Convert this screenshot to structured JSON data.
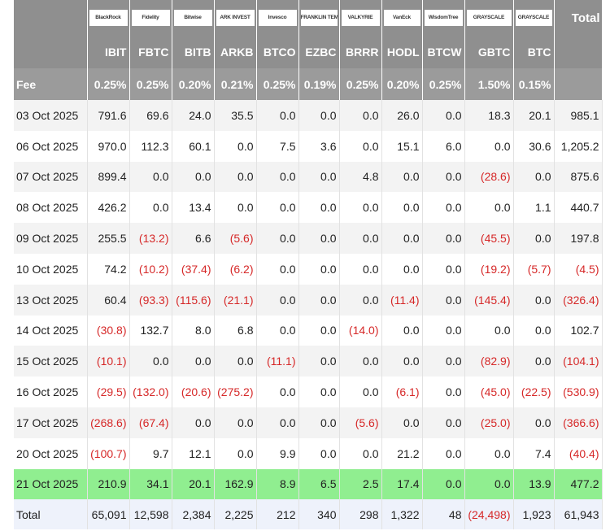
{
  "header": {
    "brands": [
      "BlackRock",
      "Fidelity",
      "Bitwise",
      "ARK INVEST",
      "Invesco",
      "FRANKLIN TEMPLETON",
      "VALKYRIE",
      "VanEck",
      "WisdomTree",
      "GRAYSCALE",
      "GRAYSCALE"
    ],
    "total_label": "Total",
    "tickers": [
      "IBIT",
      "FBTC",
      "BITB",
      "ARKB",
      "BTCO",
      "EZBC",
      "BRRR",
      "HODL",
      "BTCW",
      "GBTC",
      "BTC"
    ],
    "fee_label": "Fee",
    "fees": [
      "0.25%",
      "0.25%",
      "0.20%",
      "0.21%",
      "0.25%",
      "0.19%",
      "0.25%",
      "0.20%",
      "0.25%",
      "1.50%",
      "0.15%"
    ]
  },
  "rows": [
    {
      "date": "03 Oct 2025",
      "values": [
        "791.6",
        "69.6",
        "24.0",
        "35.5",
        "0.0",
        "0.0",
        "0.0",
        "26.0",
        "0.0",
        "18.3",
        "20.1",
        "985.1"
      ]
    },
    {
      "date": "06 Oct 2025",
      "values": [
        "970.0",
        "112.3",
        "60.1",
        "0.0",
        "7.5",
        "3.6",
        "0.0",
        "15.1",
        "6.0",
        "0.0",
        "30.6",
        "1,205.2"
      ]
    },
    {
      "date": "07 Oct 2025",
      "values": [
        "899.4",
        "0.0",
        "0.0",
        "0.0",
        "0.0",
        "0.0",
        "4.8",
        "0.0",
        "0.0",
        "(28.6)",
        "0.0",
        "875.6"
      ]
    },
    {
      "date": "08 Oct 2025",
      "values": [
        "426.2",
        "0.0",
        "13.4",
        "0.0",
        "0.0",
        "0.0",
        "0.0",
        "0.0",
        "0.0",
        "0.0",
        "1.1",
        "440.7"
      ]
    },
    {
      "date": "09 Oct 2025",
      "values": [
        "255.5",
        "(13.2)",
        "6.6",
        "(5.6)",
        "0.0",
        "0.0",
        "0.0",
        "0.0",
        "0.0",
        "(45.5)",
        "0.0",
        "197.8"
      ]
    },
    {
      "date": "10 Oct 2025",
      "values": [
        "74.2",
        "(10.2)",
        "(37.4)",
        "(6.2)",
        "0.0",
        "0.0",
        "0.0",
        "0.0",
        "0.0",
        "(19.2)",
        "(5.7)",
        "(4.5)"
      ]
    },
    {
      "date": "13 Oct 2025",
      "values": [
        "60.4",
        "(93.3)",
        "(115.6)",
        "(21.1)",
        "0.0",
        "0.0",
        "0.0",
        "(11.4)",
        "0.0",
        "(145.4)",
        "0.0",
        "(326.4)"
      ]
    },
    {
      "date": "14 Oct 2025",
      "values": [
        "(30.8)",
        "132.7",
        "8.0",
        "6.8",
        "0.0",
        "0.0",
        "(14.0)",
        "0.0",
        "0.0",
        "0.0",
        "0.0",
        "102.7"
      ]
    },
    {
      "date": "15 Oct 2025",
      "values": [
        "(10.1)",
        "0.0",
        "0.0",
        "0.0",
        "(11.1)",
        "0.0",
        "0.0",
        "0.0",
        "0.0",
        "(82.9)",
        "0.0",
        "(104.1)"
      ]
    },
    {
      "date": "16 Oct 2025",
      "values": [
        "(29.5)",
        "(132.0)",
        "(20.6)",
        "(275.2)",
        "0.0",
        "0.0",
        "0.0",
        "(6.1)",
        "0.0",
        "(45.0)",
        "(22.5)",
        "(530.9)"
      ]
    },
    {
      "date": "17 Oct 2025",
      "values": [
        "(268.6)",
        "(67.4)",
        "0.0",
        "0.0",
        "0.0",
        "0.0",
        "(5.6)",
        "0.0",
        "0.0",
        "(25.0)",
        "0.0",
        "(366.6)"
      ]
    },
    {
      "date": "20 Oct 2025",
      "values": [
        "(100.7)",
        "9.7",
        "12.1",
        "0.0",
        "9.9",
        "0.0",
        "0.0",
        "21.2",
        "0.0",
        "0.0",
        "7.4",
        "(40.4)"
      ]
    },
    {
      "date": "21 Oct 2025",
      "values": [
        "210.9",
        "34.1",
        "20.1",
        "162.9",
        "8.9",
        "6.5",
        "2.5",
        "17.4",
        "0.0",
        "0.0",
        "13.9",
        "477.2"
      ]
    }
  ],
  "total_row": {
    "label": "Total",
    "values": [
      "65,091",
      "12,598",
      "2,384",
      "2,225",
      "212",
      "340",
      "298",
      "1,322",
      "48",
      "(24,498)",
      "1,923",
      "61,943"
    ]
  }
}
